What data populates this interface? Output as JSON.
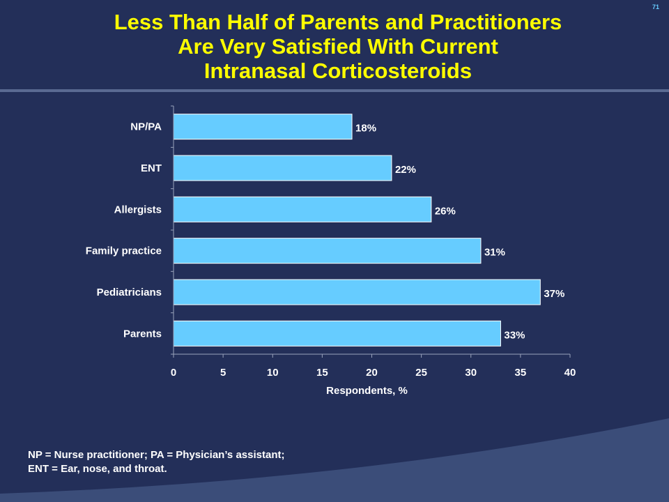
{
  "slide": {
    "number": "71",
    "title_lines": [
      "Less Than Half of Parents and Practitioners",
      "Are Very Satisfied With Current",
      "Intranasal  Corticosteroids"
    ],
    "footnote_lines": [
      "NP = Nurse practitioner; PA = Physician’s assistant;",
      "ENT = Ear, nose, and throat."
    ]
  },
  "colors": {
    "background": "#232f59",
    "title": "#ffff00",
    "bar_fill": "#66ccff",
    "bar_stroke": "#ffffff",
    "text": "#ffffff",
    "accent_band": "#3b4d79"
  },
  "chart_data": {
    "type": "bar",
    "orientation": "horizontal",
    "title": "",
    "xlabel": "Respondents, %",
    "ylabel": "",
    "categories": [
      "NP/PA",
      "ENT",
      "Allergists",
      "Family practice",
      "Pediatricians",
      "Parents"
    ],
    "values": [
      18,
      22,
      26,
      31,
      37,
      33
    ],
    "value_labels": [
      "18%",
      "22%",
      "26%",
      "31%",
      "37%",
      "33%"
    ],
    "xlim": [
      0,
      40
    ],
    "xticks": [
      0,
      5,
      10,
      15,
      20,
      25,
      30,
      35,
      40
    ],
    "grid": false,
    "legend": "none"
  }
}
